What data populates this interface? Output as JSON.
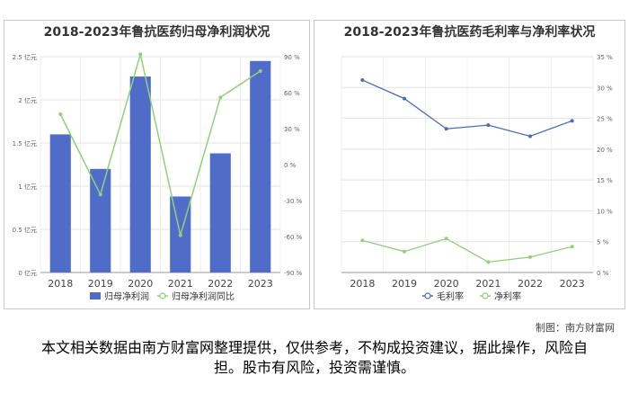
{
  "chart_data": [
    {
      "type": "bar",
      "title": "2018-2023年鲁抗医药归母净利润状况",
      "categories": [
        "2018",
        "2019",
        "2020",
        "2021",
        "2022",
        "2023"
      ],
      "series": [
        {
          "name": "归母净利润",
          "kind": "bar",
          "axis": "left",
          "color": "#4f6cc9",
          "values": [
            1.6,
            1.2,
            2.27,
            0.88,
            1.38,
            2.45
          ]
        },
        {
          "name": "归母净利润同比",
          "kind": "line",
          "axis": "right",
          "color": "#8fd175",
          "values": [
            42,
            -25,
            92,
            -59,
            56,
            78
          ]
        }
      ],
      "ylim_left": [
        0,
        2.5
      ],
      "yticks_left": [
        "0 亿元",
        "0.5 亿元",
        "1 亿元",
        "1.5 亿元",
        "2 亿元",
        "2.5 亿元"
      ],
      "ylim_right": [
        -90,
        90
      ],
      "yticks_right": [
        "-90 %",
        "-60 %",
        "-30 %",
        "0 %",
        "30 %",
        "60 %",
        "90 %"
      ],
      "grid": true,
      "legend": "bottom"
    },
    {
      "type": "line",
      "title": "2018-2023年鲁抗医药毛利率与净利率状况",
      "categories": [
        "2018",
        "2019",
        "2020",
        "2021",
        "2022",
        "2023"
      ],
      "series": [
        {
          "name": "毛利率",
          "color": "#4a6bbf",
          "values": [
            31.2,
            28.2,
            23.3,
            23.9,
            22.1,
            24.6
          ]
        },
        {
          "name": "净利率",
          "color": "#8fd175",
          "values": [
            5.2,
            3.4,
            5.5,
            1.7,
            2.5,
            4.2
          ]
        }
      ],
      "ylim": [
        0,
        35
      ],
      "yticks": [
        "0 %",
        "5 %",
        "10 %",
        "15 %",
        "20 %",
        "25 %",
        "30 %",
        "35 %"
      ],
      "ytick_side": "right",
      "grid": true,
      "legend": "bottom"
    }
  ],
  "footer": {
    "source": "制图：南方财富网",
    "disclaimer": "本文相关数据由南方财富网整理提供，仅供参考，不构成投资建议，据此操作，风险自担。股市有风险，投资需谨慎。"
  }
}
